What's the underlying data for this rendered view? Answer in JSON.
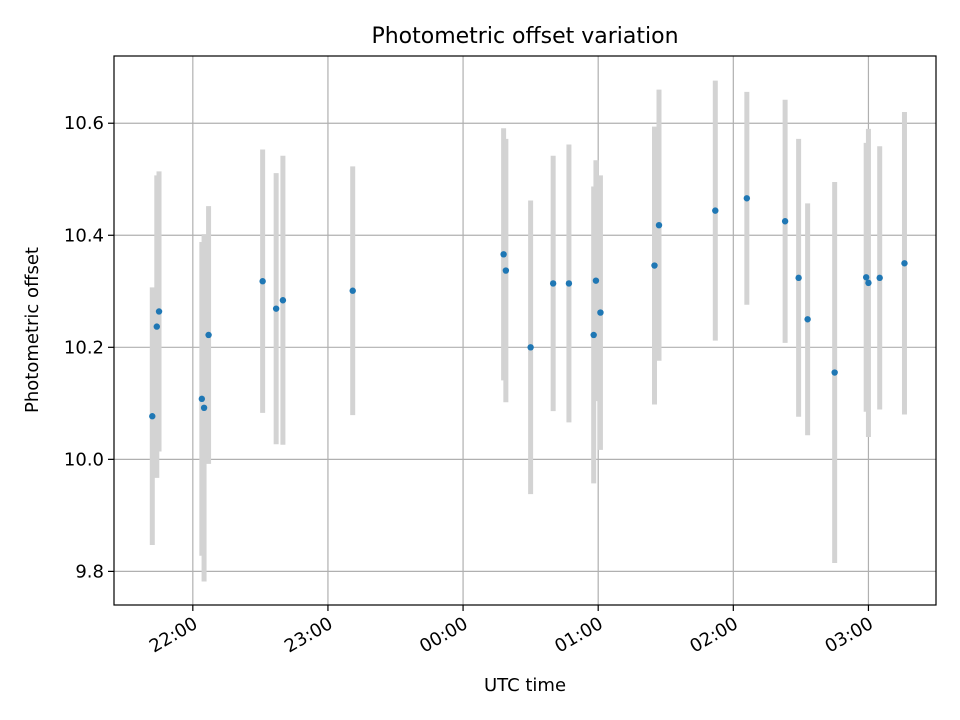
{
  "chart_data": {
    "type": "scatter",
    "title": "Photometric offset variation",
    "xlabel": "UTC time",
    "ylabel": "Photometric offset",
    "x_ticks": [
      "22:00",
      "23:00",
      "00:00",
      "01:00",
      "02:00",
      "03:00"
    ],
    "y_ticks": [
      "9.8",
      "10.0",
      "10.2",
      "10.4",
      "10.6"
    ],
    "xlim": [
      "21:25",
      "03:30"
    ],
    "ylim": [
      9.74,
      10.72
    ],
    "grid": true,
    "colors": {
      "point": "#1f77b4",
      "errorbar": "#d3d3d3",
      "grid": "#b0b0b0"
    },
    "points": [
      {
        "x": "21:42",
        "y": 10.077,
        "err": 0.23
      },
      {
        "x": "21:44",
        "y": 10.237,
        "err": 0.27
      },
      {
        "x": "21:45",
        "y": 10.264,
        "err": 0.25
      },
      {
        "x": "22:04",
        "y": 10.108,
        "err": 0.28
      },
      {
        "x": "22:05",
        "y": 10.092,
        "err": 0.31
      },
      {
        "x": "22:07",
        "y": 10.222,
        "err": 0.23
      },
      {
        "x": "22:31",
        "y": 10.318,
        "err": 0.235
      },
      {
        "x": "22:37",
        "y": 10.269,
        "err": 0.242
      },
      {
        "x": "22:40",
        "y": 10.284,
        "err": 0.258
      },
      {
        "x": "23:11",
        "y": 10.301,
        "err": 0.222
      },
      {
        "x": "00:18",
        "y": 10.366,
        "err": 0.225
      },
      {
        "x": "00:19",
        "y": 10.337,
        "err": 0.235
      },
      {
        "x": "00:30",
        "y": 10.2,
        "err": 0.262
      },
      {
        "x": "00:40",
        "y": 10.314,
        "err": 0.228
      },
      {
        "x": "00:47",
        "y": 10.314,
        "err": 0.248
      },
      {
        "x": "00:58",
        "y": 10.222,
        "err": 0.265
      },
      {
        "x": "00:59",
        "y": 10.319,
        "err": 0.215
      },
      {
        "x": "01:01",
        "y": 10.262,
        "err": 0.245
      },
      {
        "x": "01:25",
        "y": 10.346,
        "err": 0.248
      },
      {
        "x": "01:27",
        "y": 10.418,
        "err": 0.242
      },
      {
        "x": "01:52",
        "y": 10.444,
        "err": 0.232
      },
      {
        "x": "02:06",
        "y": 10.466,
        "err": 0.19
      },
      {
        "x": "02:23",
        "y": 10.425,
        "err": 0.217
      },
      {
        "x": "02:29",
        "y": 10.324,
        "err": 0.248
      },
      {
        "x": "02:33",
        "y": 10.25,
        "err": 0.207
      },
      {
        "x": "02:45",
        "y": 10.155,
        "err": 0.34
      },
      {
        "x": "02:59",
        "y": 10.325,
        "err": 0.24
      },
      {
        "x": "03:00",
        "y": 10.315,
        "err": 0.275
      },
      {
        "x": "03:05",
        "y": 10.324,
        "err": 0.235
      },
      {
        "x": "03:16",
        "y": 10.35,
        "err": 0.27
      }
    ]
  }
}
